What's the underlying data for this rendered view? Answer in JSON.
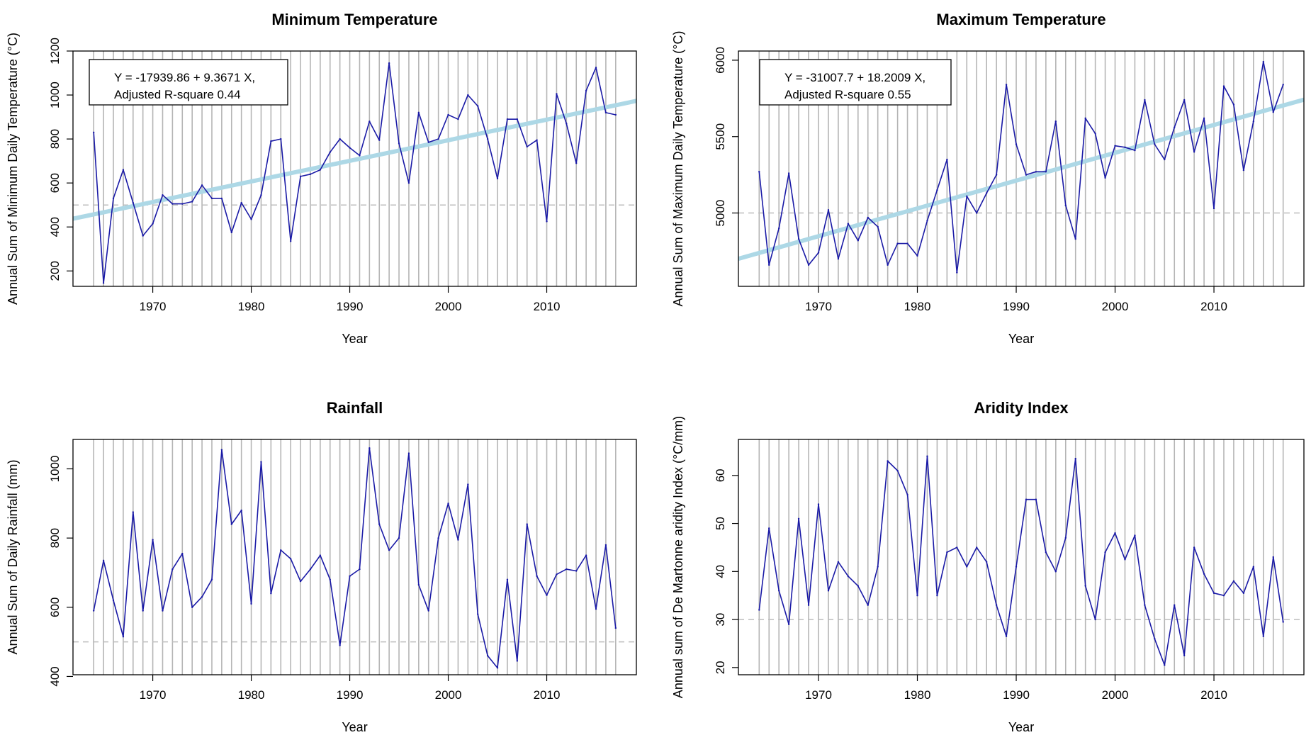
{
  "colors": {
    "series": "#1a1aa6",
    "trend": "#add8e6",
    "grid": "#b5b5b5",
    "reference": "#bdbdbd",
    "frame": "#000000"
  },
  "chart_data": [
    {
      "type": "line",
      "title": "Minimum Temperature",
      "xlabel": "Year",
      "ylabel": "Annual Sum of Minimum Daily Temperature (°C)",
      "xlim": [
        1961.9,
        2019.1
      ],
      "ylim": [
        130,
        1200
      ],
      "xticks": [
        1970,
        1980,
        1990,
        2000,
        2010
      ],
      "xtick_labels": [
        "1970",
        "1980",
        "1990",
        "2000",
        "2010"
      ],
      "yticks": [
        200,
        400,
        600,
        800,
        1000,
        1200
      ],
      "ytick_labels": [
        "200",
        "400",
        "600",
        "800",
        "1000",
        "1200"
      ],
      "reference_line": 500,
      "x": [
        1964,
        1965,
        1966,
        1967,
        1968,
        1969,
        1970,
        1971,
        1972,
        1973,
        1974,
        1975,
        1976,
        1977,
        1978,
        1979,
        1980,
        1981,
        1982,
        1983,
        1984,
        1985,
        1986,
        1987,
        1988,
        1989,
        1990,
        1991,
        1992,
        1993,
        1994,
        1995,
        1996,
        1997,
        1998,
        1999,
        2000,
        2001,
        2002,
        2003,
        2004,
        2005,
        2006,
        2007,
        2008,
        2009,
        2010,
        2011,
        2012,
        2013,
        2014,
        2015,
        2016,
        2017
      ],
      "values": [
        830,
        145,
        530,
        660,
        510,
        360,
        415,
        545,
        505,
        505,
        515,
        590,
        530,
        530,
        375,
        510,
        435,
        545,
        790,
        800,
        335,
        630,
        640,
        660,
        740,
        800,
        760,
        725,
        880,
        795,
        1145,
        780,
        600,
        920,
        785,
        800,
        910,
        890,
        1000,
        950,
        800,
        620,
        890,
        890,
        765,
        795,
        425,
        1005,
        870,
        690,
        1020,
        1125,
        920,
        910
      ],
      "trend": {
        "intercept": -17939.86,
        "slope": 9.3671
      },
      "equation": "Y = -17939.86 +  9.3671 X,",
      "r_square": "Adjusted R-square 0.44"
    },
    {
      "type": "line",
      "title": "Maximum Temperature",
      "xlabel": "Year",
      "ylabel": "Annual Sum of Maximum Daily Temperature (°C)",
      "xlim": [
        1961.9,
        2019.1
      ],
      "ylim": [
        4520,
        6060
      ],
      "xticks": [
        1970,
        1980,
        1990,
        2000,
        2010
      ],
      "xtick_labels": [
        "1970",
        "1980",
        "1990",
        "2000",
        "2010"
      ],
      "yticks": [
        5000,
        5500,
        6000
      ],
      "ytick_labels": [
        "5000",
        "5500",
        "6000"
      ],
      "reference_line": 5000,
      "x": [
        1964,
        1965,
        1966,
        1967,
        1968,
        1969,
        1970,
        1971,
        1972,
        1973,
        1974,
        1975,
        1976,
        1977,
        1978,
        1979,
        1980,
        1981,
        1982,
        1983,
        1984,
        1985,
        1986,
        1987,
        1988,
        1989,
        1990,
        1991,
        1992,
        1993,
        1994,
        1995,
        1996,
        1997,
        1998,
        1999,
        2000,
        2001,
        2002,
        2003,
        2004,
        2005,
        2006,
        2007,
        2008,
        2009,
        2010,
        2011,
        2012,
        2013,
        2014,
        2015,
        2016,
        2017
      ],
      "values": [
        5270,
        4660,
        4900,
        5260,
        4830,
        4660,
        4740,
        5020,
        4700,
        4930,
        4820,
        4970,
        4910,
        4660,
        4800,
        4800,
        4720,
        4950,
        5150,
        5350,
        4610,
        5110,
        5000,
        5130,
        5250,
        5840,
        5450,
        5250,
        5270,
        5270,
        5600,
        5050,
        4830,
        5620,
        5520,
        5230,
        5440,
        5430,
        5410,
        5740,
        5450,
        5350,
        5560,
        5740,
        5400,
        5620,
        5030,
        5830,
        5710,
        5280,
        5600,
        5990,
        5660,
        5840
      ],
      "trend": {
        "intercept": -31007.7,
        "slope": 18.2009
      },
      "equation": "Y = -31007.7 +  18.2009 X,",
      "r_square": "Adjusted R-square 0.55"
    },
    {
      "type": "line",
      "title": "Rainfall",
      "xlabel": "Year",
      "ylabel": "Annual Sum of Daily Rainfall (mm)",
      "xlim": [
        1961.9,
        2019.1
      ],
      "ylim": [
        405,
        1085
      ],
      "xticks": [
        1970,
        1980,
        1990,
        2000,
        2010
      ],
      "xtick_labels": [
        "1970",
        "1980",
        "1990",
        "2000",
        "2010"
      ],
      "yticks": [
        400,
        600,
        800,
        1000
      ],
      "ytick_labels": [
        "400",
        "600",
        "800",
        "1000"
      ],
      "reference_line": 500,
      "x": [
        1964,
        1965,
        1966,
        1967,
        1968,
        1969,
        1970,
        1971,
        1972,
        1973,
        1974,
        1975,
        1976,
        1977,
        1978,
        1979,
        1980,
        1981,
        1982,
        1983,
        1984,
        1985,
        1986,
        1987,
        1988,
        1989,
        1990,
        1991,
        1992,
        1993,
        1994,
        1995,
        1996,
        1997,
        1998,
        1999,
        2000,
        2001,
        2002,
        2003,
        2004,
        2005,
        2006,
        2007,
        2008,
        2009,
        2010,
        2011,
        2012,
        2013,
        2014,
        2015,
        2016,
        2017
      ],
      "values": [
        590,
        735,
        620,
        515,
        875,
        590,
        795,
        590,
        710,
        755,
        600,
        630,
        680,
        1055,
        840,
        880,
        610,
        1020,
        640,
        765,
        740,
        675,
        710,
        750,
        680,
        490,
        690,
        710,
        1060,
        840,
        765,
        800,
        1045,
        665,
        590,
        800,
        900,
        795,
        955,
        580,
        460,
        425,
        680,
        445,
        840,
        690,
        635,
        695,
        710,
        705,
        750,
        595,
        780,
        540
      ]
    },
    {
      "type": "line",
      "title": "Aridity Index",
      "xlabel": "Year",
      "ylabel": "Annual sum of De Martonne aridity Index (°C/mm)",
      "xlim": [
        1961.9,
        2019.1
      ],
      "ylim": [
        18.5,
        67.5
      ],
      "xticks": [
        1970,
        1980,
        1990,
        2000,
        2010
      ],
      "xtick_labels": [
        "1970",
        "1980",
        "1990",
        "2000",
        "2010"
      ],
      "yticks": [
        20,
        30,
        40,
        50,
        60
      ],
      "ytick_labels": [
        "20",
        "30",
        "40",
        "50",
        "60"
      ],
      "reference_line": 30,
      "x": [
        1964,
        1965,
        1966,
        1967,
        1968,
        1969,
        1970,
        1971,
        1972,
        1973,
        1974,
        1975,
        1976,
        1977,
        1978,
        1979,
        1980,
        1981,
        1982,
        1983,
        1984,
        1985,
        1986,
        1987,
        1988,
        1989,
        1990,
        1991,
        1992,
        1993,
        1994,
        1995,
        1996,
        1997,
        1998,
        1999,
        2000,
        2001,
        2002,
        2003,
        2004,
        2005,
        2006,
        2007,
        2008,
        2009,
        2010,
        2011,
        2012,
        2013,
        2014,
        2015,
        2016,
        2017
      ],
      "values": [
        32,
        49,
        36,
        29,
        51,
        33,
        54,
        36,
        42,
        39,
        37,
        33,
        41,
        63,
        61,
        56,
        35,
        64,
        35,
        44,
        45,
        41,
        45,
        42,
        33,
        26.5,
        41,
        55,
        55,
        44,
        40,
        47,
        63.5,
        37,
        30,
        44,
        48,
        42.5,
        47.5,
        33,
        26,
        20.5,
        33,
        22.5,
        45,
        39.5,
        35.5,
        35,
        38,
        35.5,
        41,
        26.5,
        43,
        29.5
      ]
    }
  ]
}
